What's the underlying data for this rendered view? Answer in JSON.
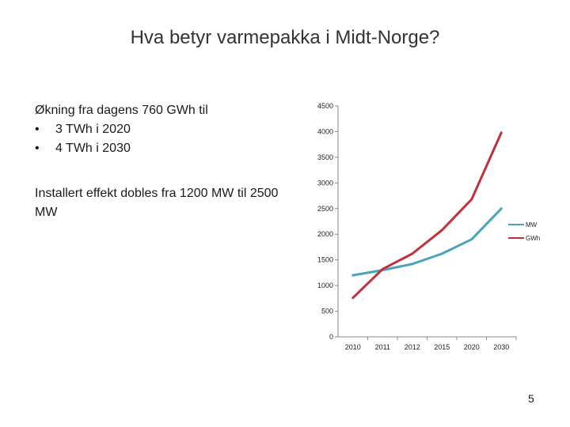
{
  "slide": {
    "title": "Hva betyr varmepakka i Midt-Norge?",
    "intro": "Økning fra dagens 760 GWh til",
    "bullets": [
      {
        "marker": "•",
        "text": "3 TWh i 2020"
      },
      {
        "marker": "•",
        "text": "4 TWh i 2030"
      }
    ],
    "paragraph": "Installert effekt dobles fra 1200 MW til 2500 MW",
    "page_number": "5"
  },
  "chart_data": {
    "type": "line",
    "categories": [
      "2010",
      "2011",
      "2012",
      "2015",
      "2020",
      "2030"
    ],
    "ylim": [
      0,
      4500
    ],
    "yticks": [
      0,
      500,
      1000,
      1500,
      2000,
      2500,
      3000,
      3500,
      4000,
      4500
    ],
    "grid": false,
    "legend": "right",
    "series": [
      {
        "name": "MW",
        "color": "#4aa3b8",
        "values": [
          1200,
          1300,
          1420,
          1620,
          1900,
          2500
        ]
      },
      {
        "name": "GWh",
        "color": "#c0323a",
        "values": [
          760,
          1320,
          1620,
          2080,
          2680,
          3980
        ]
      }
    ]
  }
}
